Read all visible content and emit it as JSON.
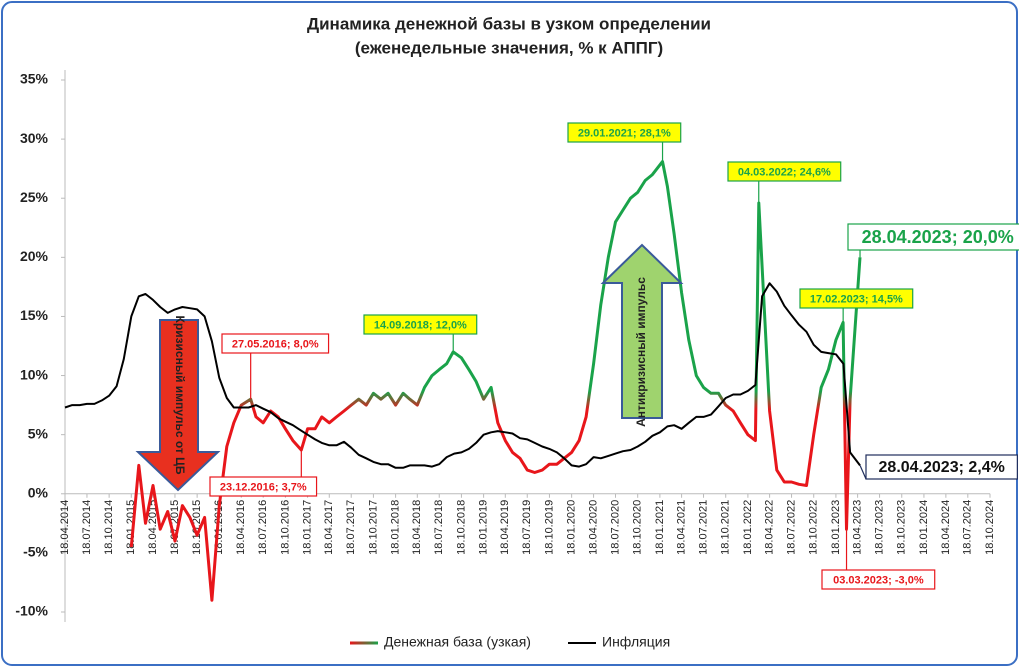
{
  "chart_data": {
    "type": "line",
    "title": "Динамика денежной базы в узком определении",
    "subtitle": "(еженедельные значения, % к АППГ)",
    "xlim": [
      "18.04.2014",
      "18.10.2024"
    ],
    "xticks": [
      "18.04.2014",
      "18.07.2014",
      "18.10.2014",
      "18.01.2015",
      "18.04.2015",
      "18.07.2015",
      "18.10.2015",
      "18.01.2016",
      "18.04.2016",
      "18.07.2016",
      "18.10.2016",
      "18.01.2017",
      "18.04.2017",
      "18.07.2017",
      "18.10.2017",
      "18.01.2018",
      "18.04.2018",
      "18.07.2018",
      "18.10.2018",
      "18.01.2019",
      "18.04.2019",
      "18.07.2019",
      "18.10.2019",
      "18.01.2020",
      "18.04.2020",
      "18.07.2020",
      "18.10.2020",
      "18.01.2021",
      "18.04.2021",
      "18.07.2021",
      "18.10.2021",
      "18.01.2022",
      "18.04.2022",
      "18.07.2022",
      "18.10.2022",
      "18.01.2023",
      "18.04.2023",
      "18.07.2023",
      "18.10.2023",
      "18.01.2024",
      "18.04.2024",
      "18.07.2024",
      "18.10.2024"
    ],
    "ylim": [
      -10,
      35
    ],
    "yticks": [
      {
        "value": -10,
        "label": "-10%"
      },
      {
        "value": -5,
        "label": "-5%"
      },
      {
        "value": 0,
        "label": "0%"
      },
      {
        "value": 5,
        "label": "5%"
      },
      {
        "value": 10,
        "label": "10%"
      },
      {
        "value": 15,
        "label": "15%"
      },
      {
        "value": 20,
        "label": "20%"
      },
      {
        "value": 25,
        "label": "25%"
      },
      {
        "value": 30,
        "label": "30%"
      },
      {
        "value": 35,
        "label": "35%"
      }
    ],
    "grid": false,
    "series": [
      {
        "name": "Денежная база (узкая)",
        "colors": [
          "#1aa34a",
          "#e8161b"
        ],
        "x": [
          "18.01.2015",
          "18.02.2015",
          "18.03.2015",
          "18.04.2015",
          "18.05.2015",
          "18.06.2015",
          "18.07.2015",
          "18.08.2015",
          "18.09.2015",
          "18.10.2015",
          "18.11.2015",
          "18.12.2015",
          "18.01.2016",
          "18.02.2016",
          "18.03.2016",
          "18.04.2016",
          "27.05.2016",
          "18.06.2016",
          "18.07.2016",
          "18.08.2016",
          "18.09.2016",
          "18.10.2016",
          "18.11.2016",
          "23.12.2016",
          "18.01.2017",
          "18.02.2017",
          "18.03.2017",
          "18.04.2017",
          "18.05.2017",
          "18.06.2017",
          "18.07.2017",
          "18.08.2017",
          "18.09.2017",
          "18.10.2017",
          "18.11.2017",
          "18.12.2017",
          "18.01.2018",
          "18.02.2018",
          "18.03.2018",
          "18.04.2018",
          "18.05.2018",
          "18.06.2018",
          "18.07.2018",
          "18.08.2018",
          "14.09.2018",
          "18.10.2018",
          "18.11.2018",
          "18.12.2018",
          "18.01.2019",
          "18.02.2019",
          "18.03.2019",
          "18.04.2019",
          "18.05.2019",
          "18.06.2019",
          "18.07.2019",
          "18.08.2019",
          "18.09.2019",
          "18.10.2019",
          "18.11.2019",
          "18.12.2019",
          "18.01.2020",
          "18.02.2020",
          "18.03.2020",
          "18.04.2020",
          "18.05.2020",
          "18.06.2020",
          "18.07.2020",
          "18.08.2020",
          "18.09.2020",
          "18.10.2020",
          "18.11.2020",
          "18.12.2020",
          "29.01.2021",
          "18.02.2021",
          "18.03.2021",
          "18.04.2021",
          "18.05.2021",
          "18.06.2021",
          "18.07.2021",
          "18.08.2021",
          "18.09.2021",
          "18.10.2021",
          "18.11.2021",
          "18.12.2021",
          "18.01.2022",
          "18.02.2022",
          "04.03.2022",
          "18.04.2022",
          "18.05.2022",
          "18.06.2022",
          "18.07.2022",
          "18.08.2022",
          "18.09.2022",
          "18.10.2022",
          "18.11.2022",
          "18.12.2022",
          "18.01.2023",
          "17.02.2023",
          "03.03.2023",
          "18.03.2023",
          "28.04.2023"
        ],
        "values": [
          -4.5,
          2.4,
          -2.5,
          0.7,
          -3,
          -1.5,
          -4,
          -1,
          -2,
          -3.5,
          -2,
          -9,
          -1,
          4,
          6,
          7.5,
          8.0,
          6.5,
          6.0,
          7.0,
          6.5,
          5.5,
          4.5,
          3.7,
          5.5,
          5.5,
          6.5,
          6.0,
          6.5,
          7.0,
          7.5,
          8.0,
          7.5,
          8.5,
          8.0,
          8.5,
          7.5,
          8.5,
          8.0,
          7.5,
          9.0,
          10.0,
          10.5,
          11.0,
          12.0,
          11.5,
          10.5,
          9.5,
          8.0,
          9.0,
          6.0,
          4.5,
          3.5,
          3.0,
          2.0,
          1.8,
          2.0,
          2.5,
          2.5,
          3.0,
          3.5,
          4.5,
          6.5,
          11,
          16,
          20,
          23,
          24,
          25,
          25.5,
          26.5,
          27,
          28.1,
          26,
          22,
          17,
          13,
          10,
          9,
          8.5,
          8.5,
          7.5,
          7,
          6,
          5,
          4.5,
          24.6,
          7,
          2,
          1,
          1,
          0.8,
          0.7,
          5,
          9,
          10.5,
          13,
          14.5,
          -3.0,
          8,
          20.0
        ]
      },
      {
        "name": "Инфляция",
        "color": "#000000",
        "x": [
          "18.04.2014",
          "18.05.2014",
          "18.06.2014",
          "18.07.2014",
          "18.08.2014",
          "18.09.2014",
          "18.10.2014",
          "18.11.2014",
          "18.12.2014",
          "18.01.2015",
          "18.02.2015",
          "18.03.2015",
          "18.04.2015",
          "18.05.2015",
          "18.06.2015",
          "18.07.2015",
          "18.08.2015",
          "18.09.2015",
          "18.10.2015",
          "18.11.2015",
          "18.12.2015",
          "18.01.2016",
          "18.02.2016",
          "18.03.2016",
          "18.04.2016",
          "18.05.2016",
          "18.06.2016",
          "18.07.2016",
          "18.08.2016",
          "18.09.2016",
          "18.10.2016",
          "18.11.2016",
          "18.12.2016",
          "18.01.2017",
          "18.02.2017",
          "18.03.2017",
          "18.04.2017",
          "18.05.2017",
          "18.06.2017",
          "18.07.2017",
          "18.08.2017",
          "18.09.2017",
          "18.10.2017",
          "18.11.2017",
          "18.12.2017",
          "18.01.2018",
          "18.02.2018",
          "18.03.2018",
          "18.04.2018",
          "18.05.2018",
          "18.06.2018",
          "18.07.2018",
          "18.08.2018",
          "18.09.2018",
          "18.10.2018",
          "18.11.2018",
          "18.12.2018",
          "18.01.2019",
          "18.02.2019",
          "18.03.2019",
          "18.04.2019",
          "18.05.2019",
          "18.06.2019",
          "18.07.2019",
          "18.08.2019",
          "18.09.2019",
          "18.10.2019",
          "18.11.2019",
          "18.12.2019",
          "18.01.2020",
          "18.02.2020",
          "18.03.2020",
          "18.04.2020",
          "18.05.2020",
          "18.06.2020",
          "18.07.2020",
          "18.08.2020",
          "18.09.2020",
          "18.10.2020",
          "18.11.2020",
          "18.12.2020",
          "18.01.2021",
          "18.02.2021",
          "18.03.2021",
          "18.04.2021",
          "18.05.2021",
          "18.06.2021",
          "18.07.2021",
          "18.08.2021",
          "18.09.2021",
          "18.10.2021",
          "18.11.2021",
          "18.12.2021",
          "18.01.2022",
          "18.02.2022",
          "18.03.2022",
          "18.04.2022",
          "18.05.2022",
          "18.06.2022",
          "18.07.2022",
          "18.08.2022",
          "18.09.2022",
          "18.10.2022",
          "18.11.2022",
          "18.12.2022",
          "18.01.2023",
          "18.02.2023",
          "18.03.2023",
          "28.04.2023"
        ],
        "values": [
          7.3,
          7.5,
          7.5,
          7.6,
          7.6,
          7.9,
          8.3,
          9.1,
          11.4,
          15,
          16.7,
          16.9,
          16.4,
          15.8,
          15.3,
          15.6,
          15.8,
          15.7,
          15.6,
          15.0,
          12.9,
          9.8,
          8.1,
          7.3,
          7.3,
          7.3,
          7.5,
          7.2,
          6.9,
          6.4,
          6.1,
          5.8,
          5.4,
          5.0,
          4.6,
          4.3,
          4.1,
          4.1,
          4.4,
          3.9,
          3.3,
          3.0,
          2.7,
          2.5,
          2.5,
          2.2,
          2.2,
          2.4,
          2.4,
          2.4,
          2.3,
          2.5,
          3.1,
          3.4,
          3.5,
          3.8,
          4.3,
          5.0,
          5.2,
          5.3,
          5.2,
          5.1,
          4.7,
          4.6,
          4.3,
          4.0,
          3.8,
          3.5,
          3.0,
          2.4,
          2.3,
          2.5,
          3.1,
          3.0,
          3.2,
          3.4,
          3.6,
          3.7,
          4.0,
          4.4,
          4.9,
          5.2,
          5.7,
          5.8,
          5.5,
          6.0,
          6.5,
          6.5,
          6.7,
          7.4,
          8.1,
          8.4,
          8.4,
          8.7,
          9.2,
          16.7,
          17.8,
          17.1,
          15.9,
          15.1,
          14.3,
          13.7,
          12.6,
          12.0,
          11.9,
          11.8,
          11.0,
          3.5,
          2.4
        ]
      }
    ],
    "annotations": [
      {
        "text": "29.01.2021; 28,1%",
        "x": "29.01.2021",
        "y": 28.1,
        "color": "#1aa34a",
        "fill": "#ffff00"
      },
      {
        "text": "04.03.2022; 24,6%",
        "x": "04.03.2022",
        "y": 24.6,
        "color": "#1aa34a",
        "fill": "#ffff00"
      },
      {
        "text": "14.09.2018; 12,0%",
        "x": "14.09.2018",
        "y": 12.0,
        "color": "#1aa34a",
        "fill": "#ffff00"
      },
      {
        "text": "17.02.2023; 14,5%",
        "x": "17.02.2023",
        "y": 14.5,
        "color": "#1aa34a",
        "fill": "#ffff00"
      },
      {
        "text": "28.04.2023; 20,0%",
        "x": "28.04.2023",
        "y": 20.0,
        "color": "#1aa34a",
        "fill": "#ffffff"
      },
      {
        "text": "27.05.2016; 8,0%",
        "x": "27.05.2016",
        "y": 8.0,
        "color": "#e8161b",
        "fill": "#ffffff"
      },
      {
        "text": "23.12.2016; 3,7%",
        "x": "23.12.2016",
        "y": 3.7,
        "color": "#e8161b",
        "fill": "#ffffff"
      },
      {
        "text": "03.03.2023; -3,0%",
        "x": "03.03.2023",
        "y": -3.0,
        "color": "#e8161b",
        "fill": "#ffffff"
      },
      {
        "text": "28.04.2023; 2,4%",
        "x": "28.04.2023",
        "y": 2.4,
        "color": "#1f2d5c",
        "fill": "#ffffff"
      }
    ],
    "arrows": [
      {
        "text": "Кризисный импульс от ЦБ",
        "color": "#e8301f"
      },
      {
        "text": "Антикризисный импульс",
        "color": "#9fd36e"
      }
    ]
  }
}
